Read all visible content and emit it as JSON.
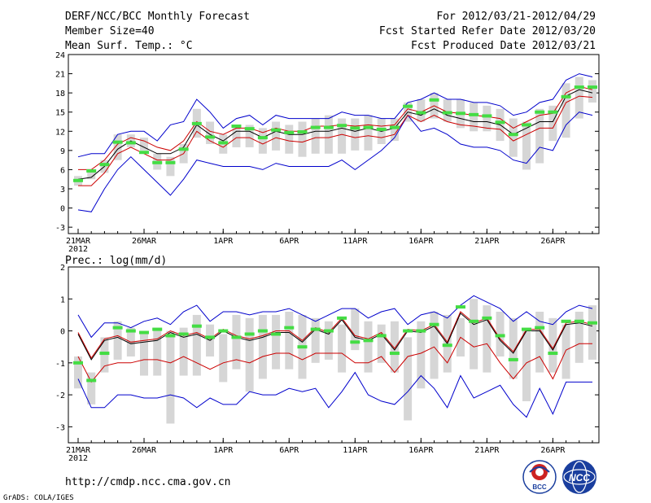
{
  "header": {
    "left": [
      "DERF/NCC/BCC Monthly Forecast",
      "Member Size=40",
      "Mean Surf. Temp.: °C"
    ],
    "right": [
      "For 2012/03/21-2012/04/29",
      "Fcst Started Refer Date 2012/03/20",
      "Fcst Produced Date 2012/03/21"
    ]
  },
  "footer": {
    "url": "http://cmdp.ncc.cma.gov.cn",
    "credit": "GrADS: COLA/IGES",
    "logo_bcc": "BCC",
    "logo_ncc": "NCC"
  },
  "colors": {
    "box": "#d6d6d6",
    "median": "#44dd44",
    "mean": "#000000",
    "band_inner": "#cc0000",
    "band_outer": "#0000cc"
  },
  "chart_data": [
    {
      "type": "box-forecast",
      "title": "Mean Surf. Temp.: °C",
      "x_labels": [
        {
          "day": 0,
          "label": "21MAR"
        },
        {
          "day": 5,
          "label": "26MAR"
        },
        {
          "day": 11,
          "label": "1APR"
        },
        {
          "day": 16,
          "label": "6APR"
        },
        {
          "day": 21,
          "label": "11APR"
        },
        {
          "day": 26,
          "label": "16APR"
        },
        {
          "day": 31,
          "label": "21APR"
        },
        {
          "day": 36,
          "label": "26APR"
        }
      ],
      "x_sublabel": "2012",
      "ylim": [
        -4,
        24
      ],
      "yticks": [
        -3,
        0,
        3,
        6,
        9,
        12,
        15,
        18,
        21,
        24
      ],
      "days": 40,
      "box_lo": [
        3.5,
        4.5,
        5.5,
        7.5,
        9.5,
        9.0,
        6.0,
        5.0,
        7.0,
        11.0,
        10.0,
        8.5,
        9.5,
        9.5,
        8.5,
        9.0,
        8.5,
        8.0,
        8.5,
        8.5,
        8.5,
        9.0,
        9.0,
        10.0,
        10.5,
        13.5,
        13.5,
        14.0,
        13.5,
        12.5,
        12.0,
        12.0,
        10.5,
        8.0,
        6.0,
        7.0,
        10.5,
        11.0,
        14.0,
        16.5
      ],
      "box_hi": [
        5.0,
        6.0,
        7.5,
        11.5,
        11.5,
        11.0,
        8.5,
        8.0,
        10.0,
        15.5,
        13.5,
        11.5,
        13.0,
        13.0,
        12.5,
        13.5,
        13.0,
        13.5,
        14.0,
        14.5,
        14.0,
        14.0,
        14.5,
        14.0,
        14.0,
        16.5,
        17.0,
        18.0,
        17.0,
        17.0,
        16.5,
        16.0,
        15.5,
        14.0,
        13.5,
        15.5,
        16.0,
        19.5,
        20.5,
        20.0
      ],
      "median": [
        4.3,
        5.8,
        6.8,
        10.3,
        10.2,
        8.7,
        7.1,
        7.1,
        9.2,
        13.2,
        11.1,
        10.2,
        12.8,
        12.4,
        11.0,
        12.2,
        11.8,
        11.9,
        12.6,
        12.6,
        12.9,
        12.5,
        12.6,
        12.3,
        12.6,
        15.9,
        14.9,
        16.9,
        14.9,
        14.8,
        14.6,
        14.4,
        13.4,
        11.5,
        13.0,
        15.0,
        15.0,
        17.4,
        18.9,
        18.9
      ],
      "mean": [
        4.5,
        4.8,
        6.5,
        9.2,
        10.5,
        9.5,
        8.5,
        8.5,
        9.5,
        13.0,
        11.5,
        10.5,
        12.0,
        12.0,
        11.0,
        12.0,
        11.5,
        11.5,
        12.0,
        12.0,
        12.5,
        12.0,
        12.5,
        12.0,
        12.5,
        15.0,
        14.5,
        15.5,
        14.5,
        14.0,
        13.5,
        13.5,
        13.0,
        11.5,
        12.5,
        13.5,
        13.5,
        17.5,
        18.5,
        18.0
      ],
      "inner_hi": [
        6.0,
        6.0,
        7.5,
        10.0,
        11.0,
        10.5,
        9.5,
        9.0,
        10.5,
        13.5,
        12.0,
        11.5,
        12.5,
        12.5,
        11.8,
        12.5,
        12.0,
        12.0,
        12.8,
        12.8,
        13.0,
        12.8,
        13.0,
        12.8,
        13.0,
        15.5,
        15.0,
        16.0,
        15.0,
        14.8,
        14.5,
        14.3,
        14.0,
        12.5,
        13.5,
        14.5,
        14.8,
        18.0,
        19.0,
        18.5
      ],
      "inner_lo": [
        3.5,
        3.5,
        5.5,
        8.5,
        9.5,
        8.5,
        7.5,
        7.5,
        8.5,
        12.0,
        10.5,
        9.5,
        11.0,
        11.0,
        10.0,
        11.0,
        10.5,
        10.3,
        11.0,
        11.0,
        11.5,
        11.0,
        11.3,
        11.0,
        11.5,
        14.5,
        13.5,
        14.5,
        13.5,
        13.0,
        12.8,
        12.5,
        12.3,
        10.5,
        11.5,
        12.5,
        12.5,
        16.5,
        17.5,
        17.3
      ],
      "outer_hi": [
        8.0,
        8.5,
        8.5,
        11.5,
        12.0,
        12.0,
        10.5,
        13.0,
        13.5,
        17.0,
        15.0,
        12.5,
        14.0,
        14.5,
        13.0,
        14.5,
        14.0,
        14.0,
        14.0,
        14.0,
        15.0,
        14.5,
        14.5,
        14.0,
        14.0,
        16.5,
        17.0,
        18.0,
        17.0,
        17.0,
        16.5,
        16.5,
        16.0,
        14.5,
        15.0,
        16.5,
        17.0,
        20.0,
        21.0,
        20.5
      ],
      "outer_lo": [
        -0.3,
        -0.6,
        3.0,
        6.0,
        8.0,
        6.0,
        4.0,
        2.0,
        4.5,
        7.5,
        7.0,
        6.5,
        6.5,
        6.5,
        6.0,
        7.0,
        6.5,
        6.5,
        6.5,
        6.5,
        7.5,
        6.0,
        7.5,
        9.0,
        11.0,
        14.5,
        12.0,
        12.5,
        11.5,
        10.0,
        9.5,
        9.5,
        9.0,
        7.5,
        7.0,
        9.5,
        9.0,
        13.0,
        15.0,
        14.5
      ]
    },
    {
      "type": "box-forecast",
      "title": "Prec.: log(mm/d)",
      "x_labels": [
        {
          "day": 0,
          "label": "21MAR"
        },
        {
          "day": 5,
          "label": "26MAR"
        },
        {
          "day": 11,
          "label": "1APR"
        },
        {
          "day": 16,
          "label": "6APR"
        },
        {
          "day": 21,
          "label": "11APR"
        },
        {
          "day": 26,
          "label": "16APR"
        },
        {
          "day": 31,
          "label": "21APR"
        },
        {
          "day": 36,
          "label": "26APR"
        }
      ],
      "x_sublabel": "2012",
      "ylim": [
        -3.5,
        2
      ],
      "yticks": [
        -3,
        -2,
        -1,
        0,
        1,
        2
      ],
      "days": 40,
      "box_lo": [
        -1.8,
        -2.3,
        -1.3,
        -0.9,
        -0.8,
        -1.4,
        -1.4,
        -2.9,
        -1.4,
        -1.4,
        -0.8,
        -1.6,
        -1.2,
        -1.9,
        -1.5,
        -1.2,
        -1.2,
        -1.5,
        -1.0,
        -0.9,
        -1.3,
        -0.6,
        -1.3,
        -1.0,
        -1.3,
        -2.8,
        -1.8,
        -1.5,
        -1.3,
        -0.8,
        -1.2,
        -1.3,
        -0.8,
        -1.5,
        -2.2,
        -1.3,
        -1.3,
        -1.5,
        -1.0,
        -0.9
      ],
      "box_hi": [
        -0.8,
        -1.3,
        -0.2,
        0.3,
        0.1,
        0.0,
        0.1,
        0.0,
        0.1,
        0.5,
        0.2,
        -0.1,
        0.5,
        0.4,
        0.5,
        0.5,
        0.6,
        0.5,
        0.4,
        0.3,
        0.2,
        0.7,
        0.3,
        0.2,
        0.3,
        -0.2,
        0.3,
        0.6,
        0.5,
        0.4,
        1.0,
        0.8,
        0.6,
        0.4,
        0.1,
        0.6,
        0.4,
        0.2,
        0.6,
        0.8
      ],
      "median": [
        -1.0,
        -1.55,
        -0.7,
        0.1,
        0.0,
        -0.05,
        0.05,
        -0.15,
        -0.1,
        0.15,
        -0.2,
        0.0,
        -0.2,
        -0.1,
        0.0,
        -0.1,
        0.1,
        -0.5,
        0.05,
        0.0,
        0.4,
        -0.35,
        -0.3,
        -0.15,
        -0.7,
        0.0,
        0.0,
        0.2,
        -0.45,
        0.75,
        0.3,
        0.4,
        -0.15,
        -0.9,
        0.05,
        0.1,
        -0.7,
        0.3,
        0.3,
        0.25
      ],
      "mean": [
        -0.1,
        -0.9,
        -0.3,
        -0.2,
        -0.4,
        -0.35,
        -0.3,
        -0.05,
        -0.2,
        -0.1,
        -0.3,
        0.0,
        -0.2,
        -0.3,
        -0.2,
        -0.05,
        -0.05,
        -0.35,
        0.05,
        -0.1,
        0.35,
        -0.2,
        -0.3,
        -0.1,
        -0.6,
        0.0,
        -0.05,
        0.15,
        -0.4,
        0.55,
        0.2,
        0.35,
        -0.3,
        -0.7,
        0.0,
        0.0,
        -0.6,
        0.2,
        0.25,
        0.15
      ],
      "inner_hi": [
        -0.05,
        -0.85,
        -0.25,
        -0.15,
        -0.35,
        -0.3,
        -0.25,
        0.0,
        -0.15,
        -0.05,
        -0.25,
        0.05,
        -0.15,
        -0.25,
        -0.15,
        0.0,
        0.0,
        -0.3,
        0.1,
        -0.05,
        0.4,
        -0.15,
        -0.25,
        -0.05,
        -0.55,
        0.05,
        0.0,
        0.2,
        -0.35,
        0.6,
        0.25,
        0.4,
        -0.25,
        -0.65,
        0.05,
        0.05,
        -0.55,
        0.25,
        0.3,
        0.2
      ],
      "inner_lo": [
        -0.8,
        -1.6,
        -1.1,
        -1.0,
        -1.0,
        -0.9,
        -0.9,
        -1.0,
        -0.8,
        -1.0,
        -1.2,
        -1.0,
        -0.9,
        -1.0,
        -0.8,
        -0.7,
        -0.7,
        -0.9,
        -0.7,
        -0.7,
        -0.7,
        -1.0,
        -1.0,
        -0.8,
        -1.3,
        -0.8,
        -0.7,
        -0.5,
        -1.0,
        -0.2,
        -0.5,
        -0.4,
        -1.0,
        -1.5,
        -1.0,
        -0.8,
        -1.5,
        -0.6,
        -0.4,
        -0.4
      ],
      "outer_hi": [
        0.5,
        -0.2,
        0.25,
        0.25,
        0.1,
        0.3,
        0.4,
        0.2,
        0.6,
        0.8,
        0.3,
        0.6,
        0.6,
        0.5,
        0.6,
        0.6,
        0.7,
        0.5,
        0.3,
        0.5,
        0.7,
        0.7,
        0.4,
        0.6,
        0.7,
        0.2,
        0.5,
        0.6,
        0.4,
        0.8,
        1.1,
        0.9,
        0.7,
        0.3,
        0.6,
        0.3,
        0.2,
        0.6,
        0.8,
        0.7
      ],
      "outer_lo": [
        -1.5,
        -2.4,
        -2.4,
        -2.0,
        -2.0,
        -2.1,
        -2.1,
        -2.0,
        -2.1,
        -2.4,
        -2.1,
        -2.3,
        -2.3,
        -1.9,
        -2.0,
        -2.0,
        -1.8,
        -1.9,
        -1.8,
        -2.4,
        -1.9,
        -1.3,
        -2.0,
        -2.2,
        -2.3,
        -1.9,
        -1.4,
        -1.8,
        -2.4,
        -1.4,
        -2.1,
        -1.9,
        -1.7,
        -2.3,
        -2.7,
        -1.8,
        -2.6,
        -1.6,
        -1.6,
        -1.6
      ]
    }
  ]
}
